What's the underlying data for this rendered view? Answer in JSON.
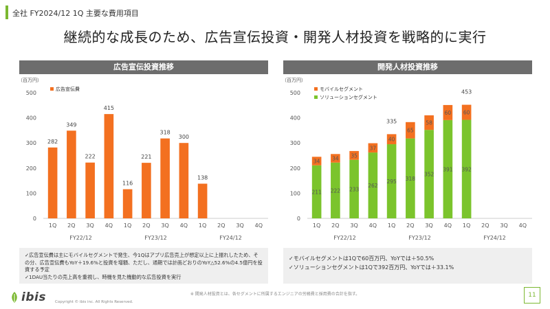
{
  "header": {
    "section_label": "全社 FY2024/12 1Q 主要な費用項目",
    "title": "継続的な成長のため、広告宣伝投資・開発人材投資を戦略的に実行"
  },
  "colors": {
    "accent_green": "#7bb830",
    "orange": "#f37020",
    "header_gray": "#6d6d6d"
  },
  "left_panel": {
    "header": "広告宣伝投資推移",
    "notes": [
      "✓広告宣伝費は主にモバイルセグメントで発生、今1Qはアプリ広告売上が想定以上に上振れしたため、その分、広告宣伝費もYoY＋19.6%と投資を増額、ただし、通期では計画どおりのYoY△52.6%の4.5億円を投資する予定",
      "✓1DAU当たりの売上高を重視し、時機を見た機動的な広告投資を実行"
    ]
  },
  "right_panel": {
    "header": "開発人材投資推移",
    "notes": [
      "✓モバイルセグメントは1Qで60百万円、YoYでは＋50.5%",
      "✓ソリューションセグメントは1Qで392百万円、YoYでは＋33.1%"
    ]
  },
  "chart_data": [
    {
      "type": "bar",
      "unit_label": "（百万円）",
      "categories": [
        "1Q",
        "2Q",
        "3Q",
        "4Q",
        "1Q",
        "2Q",
        "3Q",
        "4Q",
        "1Q",
        "2Q",
        "3Q",
        "4Q"
      ],
      "groups": [
        "FY22/12",
        "FY23/12",
        "FY24/12"
      ],
      "series": [
        {
          "name": "広告宣伝費",
          "color": "#f37020",
          "values": [
            282,
            349,
            222,
            415,
            116,
            221,
            318,
            300,
            138,
            null,
            null,
            null
          ]
        }
      ],
      "ylim": [
        0,
        500
      ],
      "yticks": [
        0,
        100,
        200,
        300,
        400,
        500
      ],
      "legend": "top-left"
    },
    {
      "type": "bar",
      "stacked": true,
      "unit_label": "（百万円）",
      "categories": [
        "1Q",
        "2Q",
        "3Q",
        "4Q",
        "1Q",
        "2Q",
        "3Q",
        "4Q",
        "1Q",
        "2Q",
        "3Q",
        "4Q"
      ],
      "groups": [
        "FY22/12",
        "FY23/12",
        "FY24/12"
      ],
      "series": [
        {
          "name": "ソリューションセグメント",
          "color": "#7bc42c",
          "values": [
            211,
            222,
            233,
            262,
            295,
            318,
            352,
            391,
            392,
            null,
            null,
            null
          ]
        },
        {
          "name": "モバイルセグメント",
          "color": "#f37020",
          "values": [
            34,
            34,
            35,
            37,
            40,
            65,
            58,
            60,
            60,
            null,
            null,
            null
          ]
        }
      ],
      "legend_order": [
        "モバイルセグメント",
        "ソリューションセグメント"
      ],
      "totals": [
        null,
        null,
        null,
        null,
        335,
        null,
        null,
        null,
        453,
        null,
        null,
        null
      ],
      "ylim": [
        0,
        500
      ],
      "yticks": [
        0,
        100,
        200,
        300,
        400,
        500
      ],
      "legend": "top-left"
    }
  ],
  "footer": {
    "note": "※ 開発人材投資とは、各セグメントに所属するエンジニアの労務費と採用費の合計を指す。",
    "logo": "ibis",
    "copyright": "Copyright © ibis inc. All Rights Reserved.",
    "page": "11"
  }
}
